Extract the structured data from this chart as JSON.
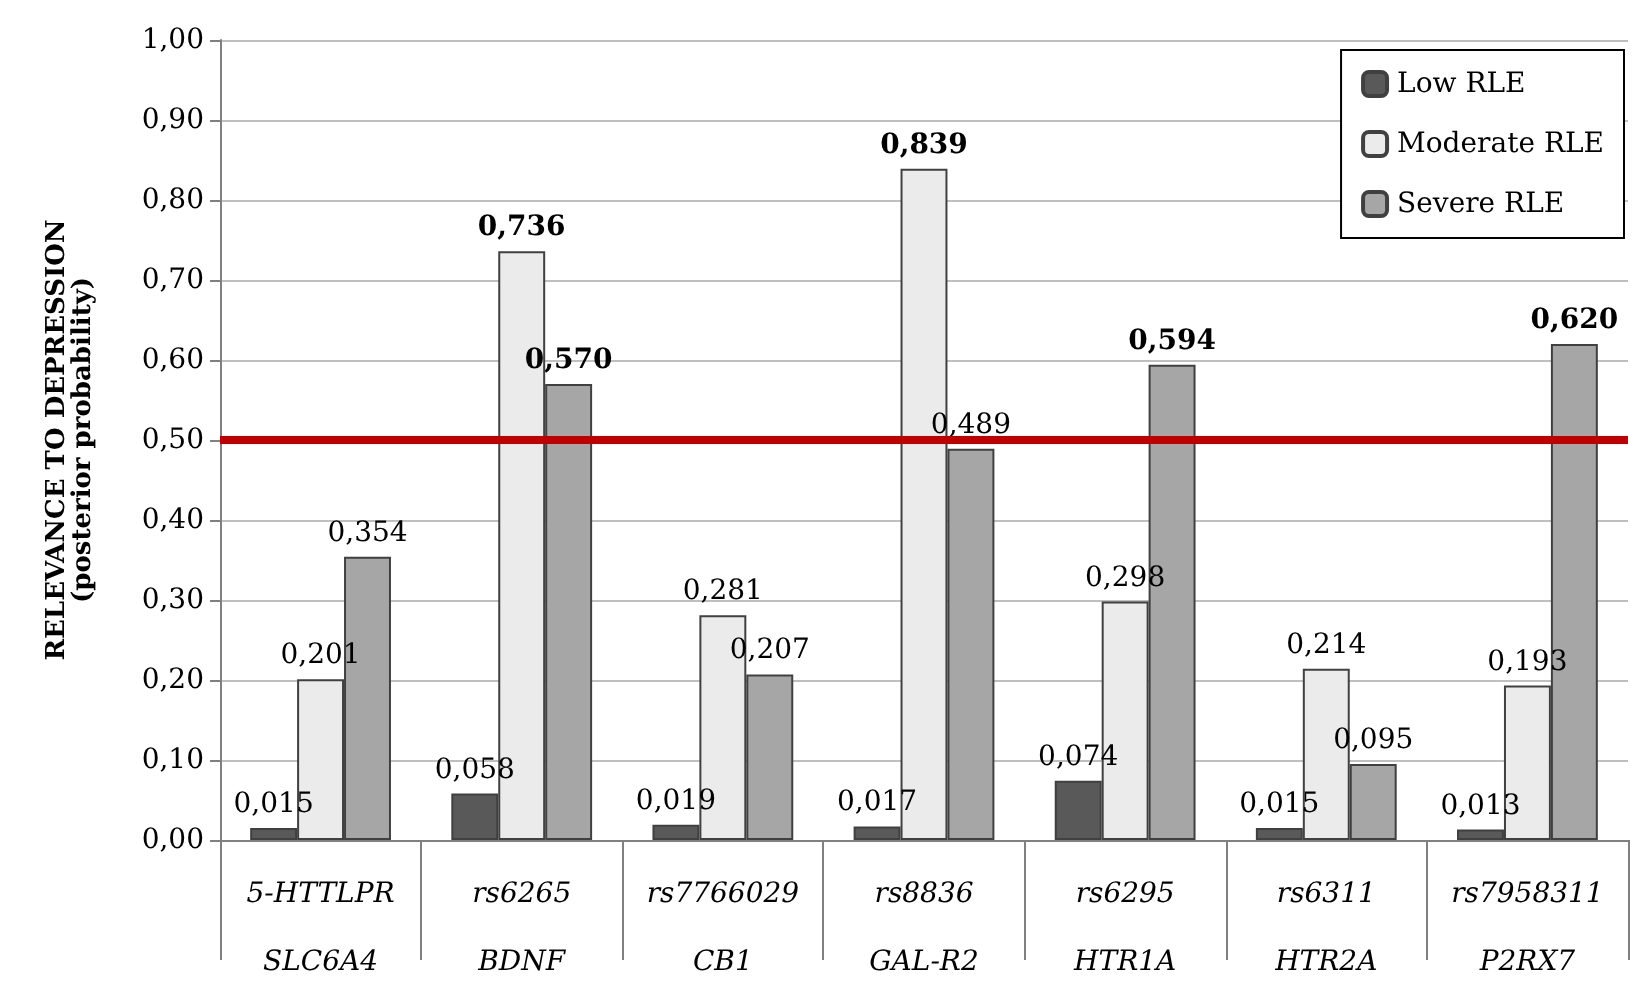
{
  "chart_data": {
    "type": "bar",
    "ylabel": "RELEVANCE TO DEPRESSION\n(posterior probability)",
    "categories": [
      "5-HTTLPR\nSLC6A4",
      "rs6265\nBDNF",
      "rs7766029\nCB1",
      "rs8836\nGAL-R2",
      "rs6295\nHTR1A",
      "rs6311\nHTR2A",
      "rs7958311\nP2RX7"
    ],
    "series": [
      {
        "name": "Low RLE",
        "color": "#595959",
        "values": [
          0.015,
          0.058,
          0.019,
          0.017,
          0.074,
          0.015,
          0.013
        ],
        "value_labels": [
          "0,015",
          "0,058",
          "0,019",
          "0,017",
          "0,074",
          "0,015",
          "0,013"
        ]
      },
      {
        "name": "Moderate RLE",
        "color": "#ebebeb",
        "values": [
          0.201,
          0.736,
          0.281,
          0.839,
          0.298,
          0.214,
          0.193
        ],
        "value_labels": [
          "0,201",
          "0,736",
          "0,281",
          "0,839",
          "0,298",
          "0,214",
          "0,193"
        ]
      },
      {
        "name": "Severe RLE",
        "color": "#a6a6a6",
        "values": [
          0.354,
          0.57,
          0.207,
          0.489,
          0.594,
          0.095,
          0.62
        ],
        "value_labels": [
          "0,354",
          "0,570",
          "0,207",
          "0,489",
          "0,594",
          "0,095",
          "0,620"
        ]
      }
    ],
    "ylim": [
      0,
      1
    ],
    "yticks": [
      {
        "value": 0,
        "label": "0,00"
      },
      {
        "value": 0.1,
        "label": "0,10"
      },
      {
        "value": 0.2,
        "label": "0,20"
      },
      {
        "value": 0.3,
        "label": "0,30"
      },
      {
        "value": 0.4,
        "label": "0,40"
      },
      {
        "value": 0.5,
        "label": "0,50"
      },
      {
        "value": 0.6,
        "label": "0,60"
      },
      {
        "value": 0.7,
        "label": "0,70"
      },
      {
        "value": 0.8,
        "label": "0,80"
      },
      {
        "value": 0.9,
        "label": "0,90"
      },
      {
        "value": 1,
        "label": "1,00"
      }
    ],
    "ref_lines": [
      {
        "axis": "y",
        "value": 0.5,
        "color": "#c00000"
      }
    ],
    "grid": "y",
    "legend": "top right"
  }
}
